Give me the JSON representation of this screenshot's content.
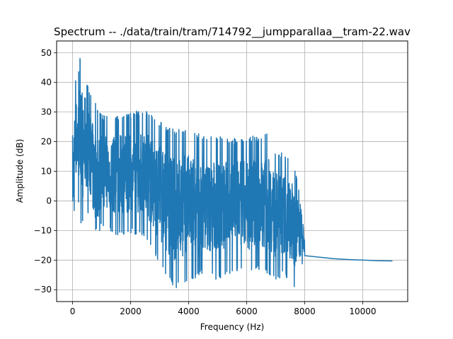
{
  "chart_data": {
    "type": "line",
    "title": "Spectrum -- ./data/train/tram/714792__jumpparallaa__tram-22.wav",
    "xlabel": "Frequency (Hz)",
    "ylabel": "Amplitude (dB)",
    "xlim": [
      -550,
      11550
    ],
    "ylim": [
      -34,
      54
    ],
    "xticks": [
      0,
      2000,
      4000,
      6000,
      8000,
      10000
    ],
    "yticks": [
      -30,
      -20,
      -10,
      0,
      10,
      20,
      30,
      40,
      50
    ],
    "grid": true,
    "legend": "none",
    "series_color": "#1f77b4",
    "series": [
      {
        "envelope": {
          "x": [
            0,
            100,
            200,
            250,
            300,
            450,
            500,
            600,
            800,
            1000,
            1500,
            2000,
            2500,
            3000,
            3500,
            4000,
            4500,
            5000,
            5500,
            6000,
            6500,
            6800,
            7000,
            7300,
            7500,
            7600,
            7700,
            7800,
            8000
          ],
          "upper": [
            24,
            41,
            43,
            50,
            36,
            46,
            40,
            36,
            33,
            29,
            29,
            30,
            31,
            27,
            24,
            25,
            22,
            22,
            21,
            22,
            22,
            23,
            17,
            16,
            16,
            13,
            9,
            4,
            -12
          ],
          "lower": [
            -12,
            2,
            -2,
            -2,
            -10,
            -5,
            -3,
            -6,
            -20,
            -8,
            -12,
            -11,
            -12,
            -22,
            -30,
            -27,
            -25,
            -27,
            -24,
            -25,
            -23,
            -25,
            -27,
            -25,
            -28,
            -30,
            -28,
            -24,
            -20
          ]
        },
        "tail": {
          "x": [
            8000,
            8500,
            9000,
            9500,
            10000,
            10500,
            11025
          ],
          "y": [
            -18.5,
            -19.0,
            -19.5,
            -19.8,
            -20.0,
            -20.2,
            -20.3
          ]
        }
      }
    ]
  }
}
